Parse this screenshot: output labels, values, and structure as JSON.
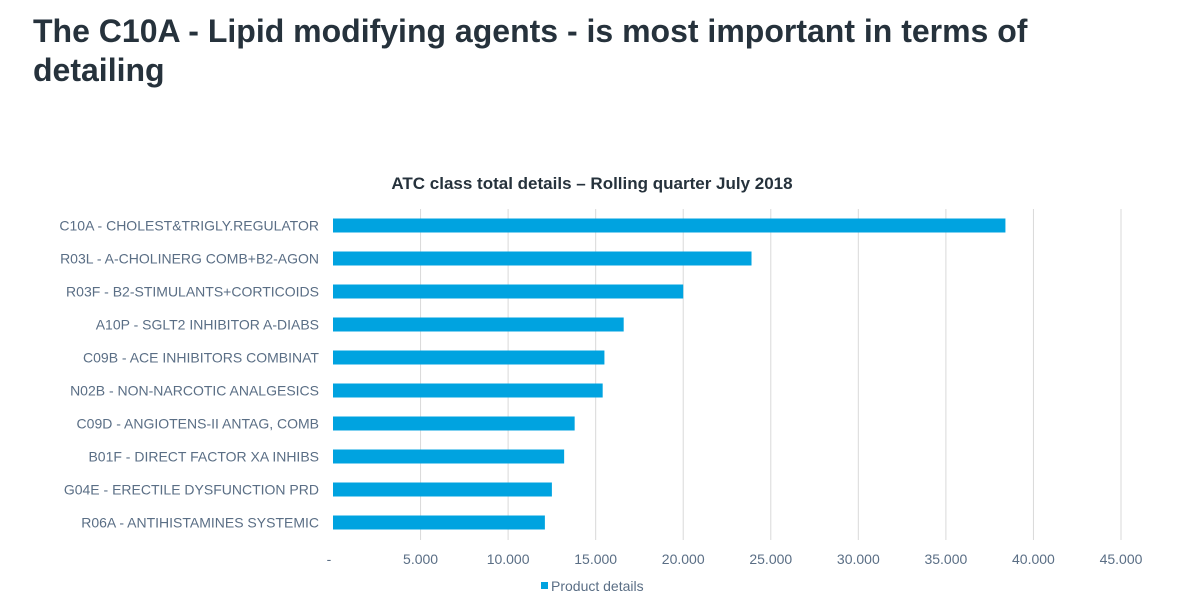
{
  "page": {
    "title": "The C10A - Lipid modifying agents - is most important in terms of detailing"
  },
  "colors": {
    "bar": "#00a3e0",
    "title_text": "#26323c",
    "label_text": "#5a6e85",
    "gridline": "#d9d9d9"
  },
  "chart_data": {
    "type": "bar",
    "orientation": "horizontal",
    "title": "ATC class total details – Rolling quarter July 2018",
    "categories": [
      "C10A - CHOLEST&TRIGLY.REGULATOR",
      "R03L - A-CHOLINERG COMB+B2-AGON",
      "R03F - B2-STIMULANTS+CORTICOIDS",
      "A10P - SGLT2 INHIBITOR A-DIABS",
      "C09B - ACE INHIBITORS COMBINAT",
      "N02B - NON-NARCOTIC ANALGESICS",
      "C09D - ANGIOTENS-II ANTAG, COMB",
      "B01F - DIRECT FACTOR XA INHIBS",
      "G04E - ERECTILE DYSFUNCTION PRD",
      "R06A - ANTIHISTAMINES SYSTEMIC"
    ],
    "series": [
      {
        "name": "Product details",
        "values": [
          38400,
          23900,
          20000,
          16600,
          15500,
          15400,
          13800,
          13200,
          12500,
          12100
        ]
      }
    ],
    "xlim": [
      0,
      45000
    ],
    "xticks": [
      0,
      5000,
      10000,
      15000,
      20000,
      25000,
      30000,
      35000,
      40000,
      45000
    ],
    "xtick_labels": [
      "-",
      "5.000",
      "10.000",
      "15.000",
      "20.000",
      "25.000",
      "30.000",
      "35.000",
      "40.000",
      "45.000"
    ],
    "xlabel": "",
    "ylabel": "",
    "grid": "vertical",
    "legend_position": "bottom"
  }
}
